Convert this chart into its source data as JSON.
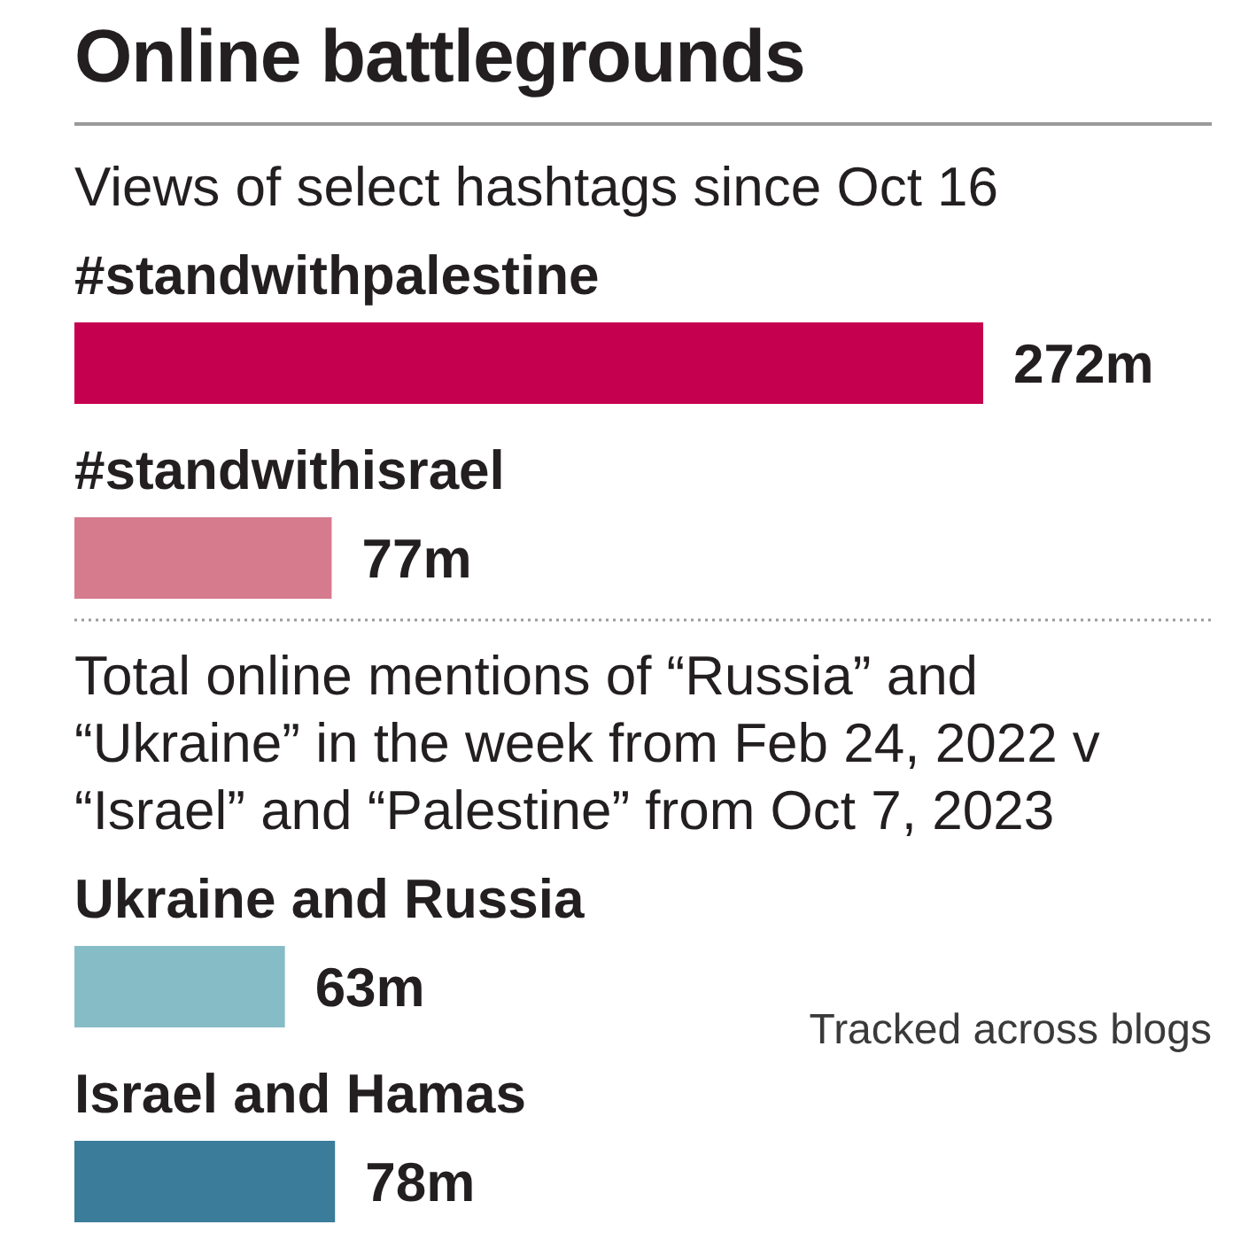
{
  "chart_data": [
    {
      "type": "bar",
      "orientation": "horizontal",
      "title": "Online battlegrounds",
      "subtitle": "Views of select hashtags since Oct 16",
      "categories": [
        "#standwithpalestine",
        "#standwithisrael"
      ],
      "values": [
        272,
        77
      ],
      "colors": [
        "#c5004f",
        "#d67b8d"
      ],
      "value_labels": [
        "272m",
        "77m"
      ]
    },
    {
      "type": "bar",
      "orientation": "horizontal",
      "title": "Total online mentions of “Russia” and “Ukraine” in the week from Feb 24, 2022 v “Israel” and “Palestine” from Oct 7, 2023",
      "categories": [
        "Ukraine and Russia",
        "Israel and Hamas"
      ],
      "values": [
        63,
        78
      ],
      "colors": [
        "#86bcc6",
        "#3a7c9a"
      ],
      "value_labels": [
        "63m",
        "78m"
      ],
      "annotations": [
        "Tracked across blogs"
      ]
    }
  ]
}
